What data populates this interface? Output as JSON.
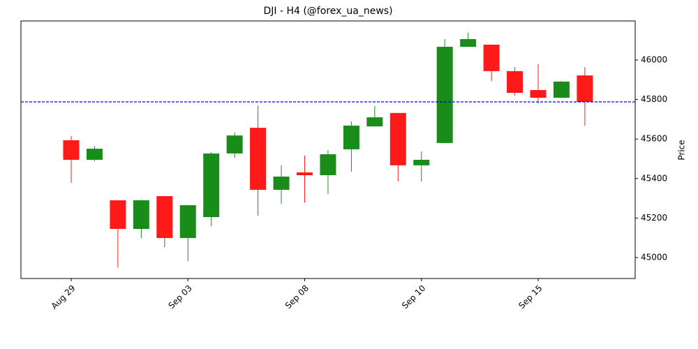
{
  "chart_data": {
    "type": "candlestick",
    "title": "DJI - H4 (@forex_ua_news)",
    "y_label": "Price",
    "categories": [
      "Aug 29",
      null,
      null,
      null,
      null,
      "Sep 03",
      null,
      null,
      null,
      null,
      "Sep 08",
      null,
      null,
      null,
      null,
      "Sep 10",
      null,
      null,
      null,
      null,
      "Sep 15",
      null,
      null
    ],
    "open": [
      45594,
      45495,
      45290,
      45145,
      45311,
      45099,
      45205,
      45527,
      45657,
      45343,
      45431,
      45417,
      45548,
      45664,
      45732,
      45467,
      45580,
      46067,
      46078,
      45944,
      45848,
      45809,
      45922
    ],
    "high": [
      45615,
      45565,
      45290,
      45293,
      45311,
      45265,
      45534,
      45633,
      45770,
      45466,
      45516,
      45544,
      45689,
      45767,
      45732,
      45537,
      46106,
      46138,
      46078,
      45965,
      45979,
      45894,
      45965
    ],
    "low": [
      45378,
      45488,
      44950,
      45099,
      45053,
      44982,
      45159,
      45505,
      45212,
      45272,
      45279,
      45322,
      45435,
      45664,
      45385,
      45385,
      45580,
      46067,
      45894,
      45820,
      45781,
      45809,
      45668
    ],
    "close": [
      45495,
      45551,
      45145,
      45290,
      45099,
      45265,
      45527,
      45618,
      45343,
      45410,
      45417,
      45523,
      45668,
      45710,
      45467,
      45495,
      46067,
      46106,
      45944,
      45834,
      45809,
      45891,
      45788
    ],
    "up_color": "#1a8c1a",
    "down_color": "#ff1a1a",
    "hline": 45788,
    "hline_color": "#0000ff",
    "ylim": [
      44894,
      46198
    ],
    "yticks": [
      45000,
      45200,
      45400,
      45600,
      45800,
      46000
    ]
  }
}
